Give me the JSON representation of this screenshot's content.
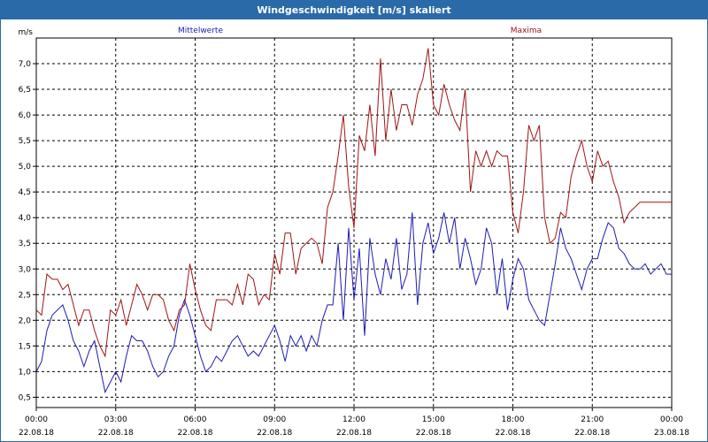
{
  "window": {
    "title": "Windgeschwindigkeit [m/s] skaliert"
  },
  "colors": {
    "series1": "#1c1cb4",
    "series2": "#a01414",
    "grid": "#000000",
    "frame": "#000000",
    "title_bg": "#2a6aa8"
  },
  "chart_data": {
    "type": "line",
    "title": "Windgeschwindigkeit [m/s] skaliert",
    "ylabel": "m/s",
    "xlabel": "",
    "xlim": [
      0,
      24
    ],
    "ylim": [
      0.3,
      7.5
    ],
    "grid": true,
    "y_ticks": [
      "0,5",
      "1,0",
      "1,5",
      "2,0",
      "2,5",
      "3,0",
      "3,5",
      "4,0",
      "4,5",
      "5,0",
      "5,5",
      "6,0",
      "6,5",
      "7,0"
    ],
    "y_tick_values": [
      0.5,
      1.0,
      1.5,
      2.0,
      2.5,
      3.0,
      3.5,
      4.0,
      4.5,
      5.0,
      5.5,
      6.0,
      6.5,
      7.0
    ],
    "x_ticks": [
      {
        "time": "00:00",
        "date": "22.08.18"
      },
      {
        "time": "03:00",
        "date": "22.08.18"
      },
      {
        "time": "06:00",
        "date": "22.08.18"
      },
      {
        "time": "09:00",
        "date": "22.08.18"
      },
      {
        "time": "12:00",
        "date": "22.08.18"
      },
      {
        "time": "15:00",
        "date": "22.08.18"
      },
      {
        "time": "18:00",
        "date": "22.08.18"
      },
      {
        "time": "21:00",
        "date": "22.08.18"
      },
      {
        "time": "00:00",
        "date": "23.08.18"
      }
    ],
    "x_tick_values": [
      0,
      3,
      6,
      9,
      12,
      15,
      18,
      21,
      24
    ],
    "series": [
      {
        "name": "Mittelwerte",
        "color": "#1c1cb4",
        "x": [
          0.0,
          0.2,
          0.4,
          0.6,
          0.8,
          1.0,
          1.2,
          1.4,
          1.6,
          1.8,
          2.0,
          2.2,
          2.4,
          2.6,
          2.8,
          3.0,
          3.2,
          3.4,
          3.6,
          3.8,
          4.0,
          4.2,
          4.4,
          4.6,
          4.8,
          5.0,
          5.2,
          5.4,
          5.6,
          5.8,
          6.0,
          6.2,
          6.4,
          6.6,
          6.8,
          7.0,
          7.2,
          7.4,
          7.6,
          7.8,
          8.0,
          8.2,
          8.4,
          8.6,
          8.8,
          9.0,
          9.2,
          9.4,
          9.6,
          9.8,
          10.0,
          10.2,
          10.4,
          10.6,
          10.8,
          11.0,
          11.2,
          11.4,
          11.6,
          11.8,
          12.0,
          12.2,
          12.4,
          12.6,
          12.8,
          13.0,
          13.2,
          13.4,
          13.6,
          13.8,
          14.0,
          14.2,
          14.4,
          14.6,
          14.8,
          15.0,
          15.2,
          15.4,
          15.6,
          15.8,
          16.0,
          16.2,
          16.4,
          16.6,
          16.8,
          17.0,
          17.2,
          17.4,
          17.6,
          17.8,
          18.0,
          18.2,
          18.4,
          18.6,
          18.8,
          19.0,
          19.2,
          19.4,
          19.6,
          19.8,
          20.0,
          20.2,
          20.4,
          20.6,
          20.8,
          21.0,
          21.2,
          21.4,
          21.6,
          21.8,
          22.0,
          22.2,
          22.4,
          22.6,
          22.8,
          23.0,
          23.2,
          23.4,
          23.6,
          23.8,
          24.0
        ],
        "values": [
          1.0,
          1.2,
          1.8,
          2.1,
          2.2,
          2.3,
          2.0,
          1.6,
          1.4,
          1.1,
          1.4,
          1.6,
          1.1,
          0.6,
          0.8,
          1.0,
          0.8,
          1.3,
          1.7,
          1.6,
          1.6,
          1.4,
          1.1,
          0.9,
          1.0,
          1.3,
          1.5,
          2.1,
          2.4,
          2.1,
          1.7,
          1.3,
          1.0,
          1.1,
          1.3,
          1.2,
          1.4,
          1.6,
          1.7,
          1.5,
          1.3,
          1.4,
          1.3,
          1.5,
          1.7,
          1.9,
          1.6,
          1.2,
          1.7,
          1.5,
          1.7,
          1.4,
          1.7,
          1.5,
          2.0,
          2.3,
          2.3,
          3.5,
          2.0,
          3.8,
          2.4,
          3.4,
          1.7,
          3.6,
          2.9,
          2.5,
          3.2,
          2.8,
          3.6,
          2.6,
          2.9,
          4.1,
          2.3,
          3.5,
          3.9,
          3.3,
          3.6,
          4.1,
          3.5,
          4.0,
          3.0,
          3.6,
          3.2,
          2.7,
          3.0,
          3.8,
          3.5,
          2.5,
          3.2,
          2.2,
          2.8,
          3.2,
          3.0,
          2.4,
          2.2,
          2.0,
          1.9,
          2.5,
          3.1,
          3.8,
          3.4,
          3.2,
          2.9,
          2.6,
          3.0,
          3.2,
          3.2,
          3.6,
          3.9,
          3.8,
          3.4,
          3.3,
          3.1,
          3.0,
          3.0,
          3.1,
          2.9,
          3.0,
          3.1,
          2.9,
          2.9
        ],
        "label_pos_x": 6.2
      },
      {
        "name": "Maxima",
        "color": "#a01414",
        "x": [
          0.0,
          0.2,
          0.4,
          0.6,
          0.8,
          1.0,
          1.2,
          1.4,
          1.6,
          1.8,
          2.0,
          2.2,
          2.4,
          2.6,
          2.8,
          3.0,
          3.2,
          3.4,
          3.6,
          3.8,
          4.0,
          4.2,
          4.4,
          4.6,
          4.8,
          5.0,
          5.2,
          5.4,
          5.6,
          5.8,
          6.0,
          6.2,
          6.4,
          6.6,
          6.8,
          7.0,
          7.2,
          7.4,
          7.6,
          7.8,
          8.0,
          8.2,
          8.4,
          8.6,
          8.8,
          9.0,
          9.2,
          9.4,
          9.6,
          9.8,
          10.0,
          10.2,
          10.4,
          10.6,
          10.8,
          11.0,
          11.2,
          11.4,
          11.6,
          11.8,
          12.0,
          12.2,
          12.4,
          12.6,
          12.8,
          13.0,
          13.2,
          13.4,
          13.6,
          13.8,
          14.0,
          14.2,
          14.4,
          14.6,
          14.8,
          15.0,
          15.2,
          15.4,
          15.6,
          15.8,
          16.0,
          16.2,
          16.4,
          16.6,
          16.8,
          17.0,
          17.2,
          17.4,
          17.6,
          17.8,
          18.0,
          18.2,
          18.4,
          18.6,
          18.8,
          19.0,
          19.2,
          19.4,
          19.6,
          19.8,
          20.0,
          20.2,
          20.4,
          20.6,
          20.8,
          21.0,
          21.2,
          21.4,
          21.6,
          21.8,
          22.0,
          22.2,
          22.4,
          22.6,
          22.8,
          23.0,
          23.2,
          23.4,
          23.6,
          23.8,
          24.0
        ],
        "values": [
          2.2,
          2.1,
          2.9,
          2.8,
          2.8,
          2.6,
          2.7,
          2.3,
          1.9,
          2.2,
          2.2,
          1.8,
          1.5,
          1.3,
          2.2,
          2.1,
          2.4,
          1.9,
          2.3,
          2.7,
          2.5,
          2.2,
          2.5,
          2.5,
          2.4,
          2.0,
          1.8,
          2.2,
          2.3,
          3.1,
          2.6,
          2.2,
          1.9,
          1.8,
          2.4,
          2.4,
          2.4,
          2.3,
          2.7,
          2.3,
          2.9,
          2.8,
          2.3,
          2.5,
          2.4,
          3.3,
          2.9,
          3.7,
          3.7,
          2.9,
          3.4,
          3.5,
          3.6,
          3.5,
          3.1,
          4.2,
          4.5,
          5.2,
          6.0,
          4.6,
          3.8,
          5.6,
          5.3,
          6.2,
          5.2,
          7.1,
          5.5,
          6.5,
          5.7,
          6.2,
          6.2,
          5.8,
          6.4,
          6.7,
          7.3,
          6.2,
          6.0,
          6.6,
          6.2,
          5.9,
          5.7,
          6.5,
          4.5,
          5.3,
          5.0,
          5.3,
          5.0,
          5.3,
          5.2,
          5.2,
          4.1,
          3.7,
          4.5,
          5.8,
          5.5,
          5.8,
          4.0,
          3.5,
          3.6,
          4.1,
          4.0,
          4.8,
          5.2,
          5.5,
          5.0,
          4.7,
          5.3,
          5.0,
          5.1,
          4.7,
          4.4,
          3.9,
          4.1,
          4.2,
          4.3,
          4.3,
          4.3,
          4.3,
          4.3,
          4.3,
          4.3
        ],
        "label_pos_x": 18.5
      }
    ]
  }
}
